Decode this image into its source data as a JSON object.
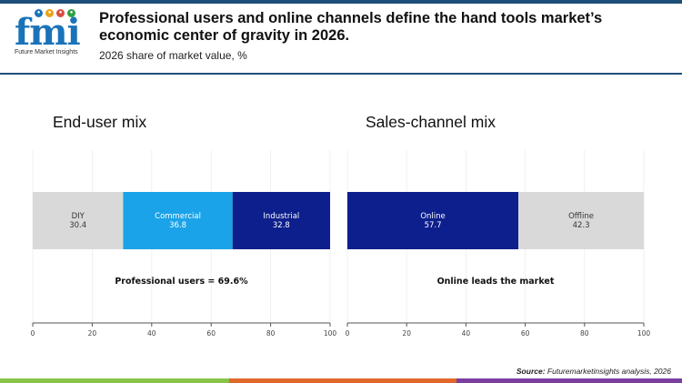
{
  "brand": {
    "logo_text": "fmi",
    "logo_subtitle": "Future Market Insights"
  },
  "header": {
    "title": "Professional users and online channels define the hand tools market’s economic center of gravity in 2026.",
    "subtitle": "2026 share of market value, %"
  },
  "colors": {
    "diy": "#d9d9d9",
    "commercial": "#1aa3e8",
    "industrial": "#0d1f8c",
    "online": "#0d1f8c",
    "offline": "#d9d9d9",
    "accent": "#1f4e79"
  },
  "chart_data": [
    {
      "type": "bar",
      "orientation": "horizontal-stacked",
      "title": "End-user mix",
      "categories": [
        "DIY",
        "Commercial",
        "Industrial"
      ],
      "values": [
        30.4,
        36.8,
        32.8
      ],
      "xlim": [
        0,
        100
      ],
      "xticks": [
        0,
        20,
        40,
        60,
        80,
        100
      ],
      "annotation": "Professional users = 69.6%",
      "grid": true
    },
    {
      "type": "bar",
      "orientation": "horizontal-stacked",
      "title": "Sales-channel mix",
      "categories": [
        "Online",
        "Offline"
      ],
      "values": [
        57.7,
        42.3
      ],
      "xlim": [
        0,
        100
      ],
      "xticks": [
        0,
        20,
        40,
        60,
        80,
        100
      ],
      "annotation": "Online leads the market",
      "grid": true
    }
  ],
  "footer": {
    "source_label": "Source:",
    "source_text": "Futuremarketinsights analysis, 2026"
  }
}
